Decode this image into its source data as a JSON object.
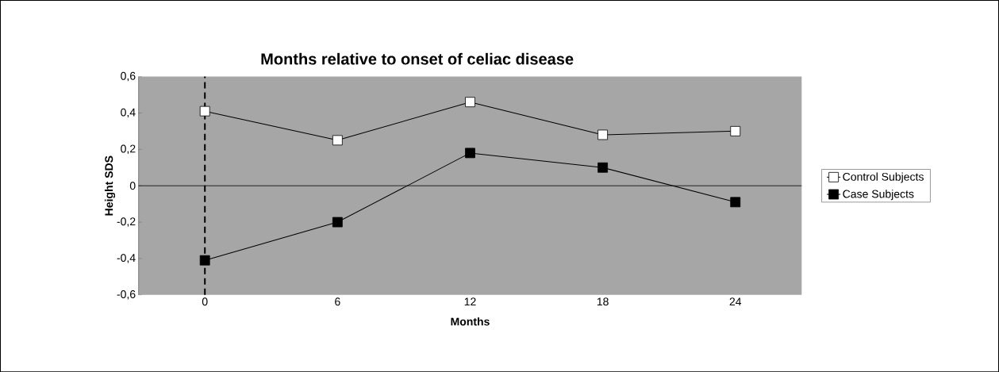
{
  "chart_data": {
    "type": "line",
    "title": "Months relative to onset of celiac disease",
    "xlabel": "Months",
    "ylabel": "Height SDS",
    "x": [
      0,
      6,
      12,
      18,
      24
    ],
    "xlim": [
      -3,
      27
    ],
    "xticks": [
      0,
      6,
      12,
      18,
      24
    ],
    "ylim": [
      -0.6,
      0.6
    ],
    "yticks": [
      {
        "value": -0.6,
        "label": "-0,6"
      },
      {
        "value": -0.4,
        "label": "-0,4"
      },
      {
        "value": -0.2,
        "label": "-0,2"
      },
      0,
      {
        "value": 0.2,
        "label": "0,2"
      },
      {
        "value": 0.4,
        "label": "0,4"
      },
      {
        "value": 0.6,
        "label": "0,6"
      }
    ],
    "series": [
      {
        "name": "Control Subjects",
        "color": "#ffffff",
        "values": [
          0.41,
          0.25,
          0.46,
          0.28,
          0.3
        ]
      },
      {
        "name": "Case Subjects",
        "color": "#000000",
        "values": [
          -0.41,
          -0.2,
          0.18,
          0.1,
          -0.09
        ]
      }
    ],
    "ref_lines": [
      {
        "axis": "x",
        "value": 0,
        "color": "#000000",
        "line_style": "dashed"
      },
      {
        "axis": "y",
        "value": 0,
        "color": "#000000",
        "line_style": "solid"
      }
    ],
    "marker": "square",
    "line_style": "solid",
    "legend": "right",
    "grid": false
  }
}
